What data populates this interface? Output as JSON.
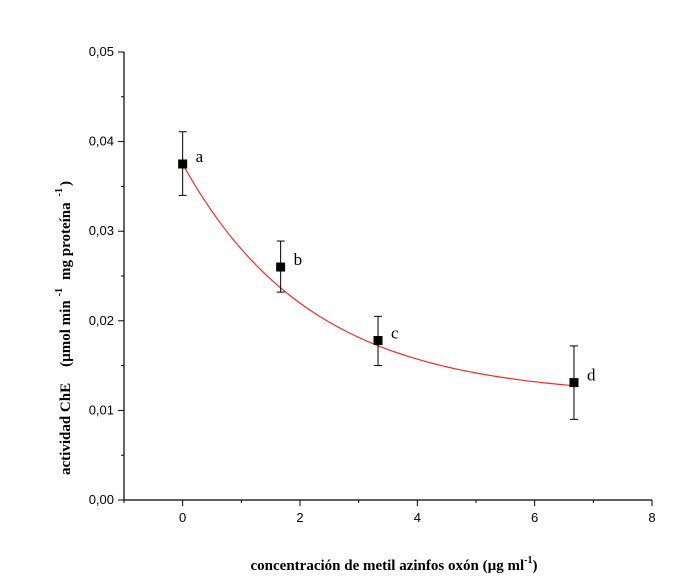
{
  "chart_data": {
    "type": "scatter",
    "xlabel": "concentración de metil azinfos oxón (µg ml",
    "xlabel_sup": "-1",
    "xlabel_close": ")",
    "ylabel_main": "actividad ChE",
    "ylabel_unit_1": "(µmol min",
    "ylabel_unit_sup1": "-1",
    "ylabel_unit_2": "mg proteína",
    "ylabel_unit_sup2": "-1",
    "ylabel_unit_close": ")",
    "xlim": [
      -1,
      8
    ],
    "ylim": [
      0,
      0.05
    ],
    "x_ticks": [
      0,
      2,
      4,
      6,
      8
    ],
    "x_tick_labels": [
      "0",
      "2",
      "4",
      "6",
      "8"
    ],
    "y_ticks": [
      0,
      0.01,
      0.02,
      0.03,
      0.04,
      0.05
    ],
    "y_tick_labels": [
      "0,00",
      "0,01",
      "0,02",
      "0,03",
      "0,04",
      "0,05"
    ],
    "points": [
      {
        "x": 0,
        "y": 0.0375,
        "err_low": 0.034,
        "err_high": 0.0411,
        "label": "a"
      },
      {
        "x": 1.67,
        "y": 0.026,
        "err_low": 0.0232,
        "err_high": 0.0289,
        "label": "b"
      },
      {
        "x": 3.33,
        "y": 0.0178,
        "err_low": 0.015,
        "err_high": 0.0205,
        "label": "c"
      },
      {
        "x": 6.67,
        "y": 0.0131,
        "err_low": 0.009,
        "err_high": 0.0172,
        "label": "d"
      }
    ],
    "fit_curve": {
      "type": "exponential_decay",
      "y0": 0.0115,
      "A": 0.026,
      "t": 2.2,
      "x_range": [
        0,
        6.67
      ],
      "color": "#e8302a"
    },
    "marker_color": "#000000"
  }
}
